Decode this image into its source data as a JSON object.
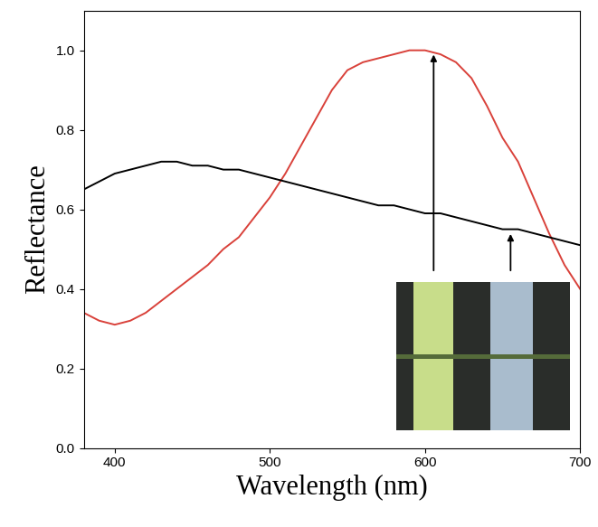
{
  "chart_data": {
    "type": "line",
    "x_label": "Wavelength (nm)",
    "y_label": "Reflectance",
    "x": [
      380,
      390,
      400,
      410,
      420,
      430,
      440,
      450,
      460,
      470,
      480,
      490,
      500,
      510,
      520,
      530,
      540,
      550,
      560,
      570,
      580,
      590,
      600,
      610,
      620,
      630,
      640,
      650,
      660,
      670,
      680,
      690,
      700
    ],
    "series": [
      {
        "color": "#d9413a",
        "values": [
          0.34,
          0.32,
          0.31,
          0.32,
          0.34,
          0.37,
          0.4,
          0.43,
          0.46,
          0.5,
          0.53,
          0.58,
          0.63,
          0.69,
          0.76,
          0.83,
          0.9,
          0.95,
          0.97,
          0.98,
          0.99,
          1.0,
          1.0,
          0.99,
          0.97,
          0.93,
          0.86,
          0.78,
          0.72,
          0.63,
          0.54,
          0.46,
          0.4
        ]
      },
      {
        "color": "#000000",
        "values": [
          0.65,
          0.67,
          0.69,
          0.7,
          0.71,
          0.72,
          0.72,
          0.71,
          0.71,
          0.7,
          0.7,
          0.69,
          0.68,
          0.67,
          0.66,
          0.65,
          0.64,
          0.63,
          0.62,
          0.61,
          0.61,
          0.6,
          0.59,
          0.59,
          0.58,
          0.57,
          0.56,
          0.55,
          0.55,
          0.54,
          0.53,
          0.52,
          0.51
        ]
      }
    ],
    "xlim": [
      380,
      700
    ],
    "xticks": [
      400,
      500,
      600,
      700
    ],
    "ylim": [
      0,
      1.1
    ],
    "yticks": [
      {
        "value": 0.0,
        "label": "0.0"
      },
      {
        "value": 0.2,
        "label": "0.2"
      },
      {
        "value": 0.4,
        "label": "0.4"
      },
      {
        "value": 0.6,
        "label": "0.6"
      },
      {
        "value": 0.8,
        "label": "0.8"
      },
      {
        "value": 1.0,
        "label": "1.0"
      }
    ],
    "grid": false
  }
}
